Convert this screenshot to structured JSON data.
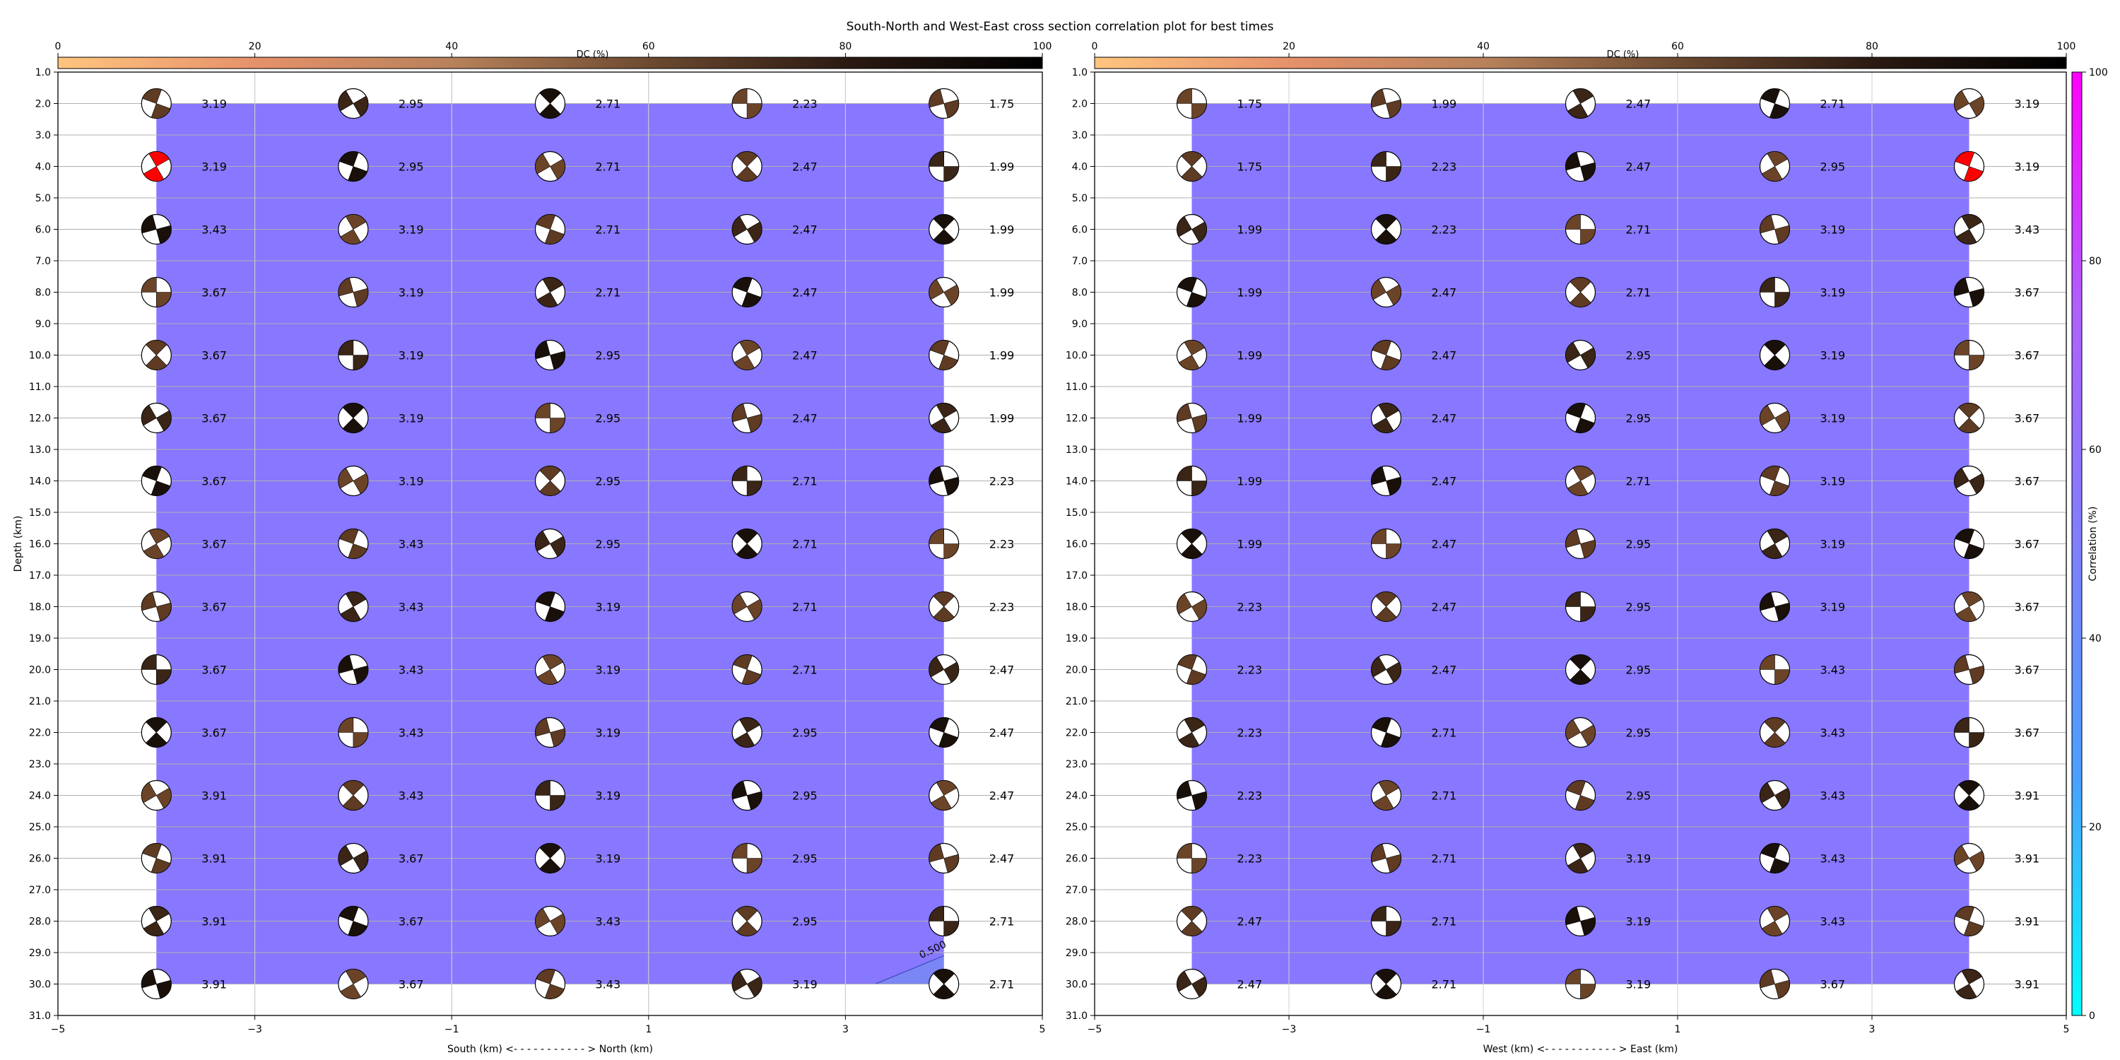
{
  "chart_data": {
    "type": "scatter",
    "title": "South-North and West-East cross section correlation plot for best times",
    "dc_colorbar": {
      "label": "DC (%)",
      "range": [
        0,
        100
      ],
      "ticks": [
        "0",
        "20",
        "40",
        "60",
        "80",
        "100"
      ],
      "colors": [
        "#ffc57f",
        "#e6916a",
        "#b8825b",
        "#6d4a30",
        "#2b1a12",
        "#000000"
      ]
    },
    "correlation_colorbar": {
      "label": "Correlation (%)",
      "range": [
        0,
        100
      ],
      "ticks": [
        "0",
        "20",
        "40",
        "60",
        "80",
        "100"
      ],
      "colors": [
        "#00ffff",
        "#4aa0ff",
        "#7f7fff",
        "#b060ff",
        "#ff00ff"
      ]
    },
    "depth_ticks": [
      "1.0",
      "2.0",
      "3.0",
      "4.0",
      "5.0",
      "6.0",
      "7.0",
      "8.0",
      "9.0",
      "10.0",
      "11.0",
      "12.0",
      "13.0",
      "14.0",
      "15.0",
      "16.0",
      "17.0",
      "18.0",
      "19.0",
      "20.0",
      "21.0",
      "22.0",
      "23.0",
      "24.0",
      "25.0",
      "26.0",
      "27.0",
      "28.0",
      "29.0",
      "30.0",
      "31.0"
    ],
    "depth_range": [
      1,
      31
    ],
    "x_range": [
      -5,
      5
    ],
    "x_ticks": [
      "−5",
      "−3",
      "−1",
      "1",
      "3",
      "5"
    ],
    "x_tick_values": [
      -5,
      -3,
      -1,
      1,
      3,
      5
    ],
    "contour_label": "0.500",
    "fill_color": "#8877ff",
    "fill_hex": "#7b86f5",
    "best_color": "#ff0000",
    "depths": [
      2,
      4,
      6,
      8,
      10,
      12,
      14,
      16,
      18,
      20,
      22,
      24,
      26,
      28,
      30
    ],
    "panels": [
      {
        "ylabel": "Depth (km)",
        "xlabel": "South (km) <- - - - - - - - - - - > North (km)",
        "positions": [
          -4,
          -2,
          0,
          2,
          4
        ],
        "best": [
          1,
          0
        ],
        "values": [
          [
            "3.19",
            "2.95",
            "2.71",
            "2.23",
            "1.75"
          ],
          [
            "3.19",
            "2.95",
            "2.71",
            "2.47",
            "1.99"
          ],
          [
            "3.43",
            "3.19",
            "2.71",
            "2.47",
            "1.99"
          ],
          [
            "3.67",
            "3.19",
            "2.71",
            "2.47",
            "1.99"
          ],
          [
            "3.67",
            "3.19",
            "2.95",
            "2.47",
            "1.99"
          ],
          [
            "3.67",
            "3.19",
            "2.95",
            "2.47",
            "1.99"
          ],
          [
            "3.67",
            "3.19",
            "2.95",
            "2.71",
            "2.23"
          ],
          [
            "3.67",
            "3.43",
            "2.95",
            "2.71",
            "2.23"
          ],
          [
            "3.67",
            "3.43",
            "3.19",
            "2.71",
            "2.23"
          ],
          [
            "3.67",
            "3.43",
            "3.19",
            "2.71",
            "2.47"
          ],
          [
            "3.67",
            "3.43",
            "3.19",
            "2.95",
            "2.47"
          ],
          [
            "3.91",
            "3.43",
            "3.19",
            "2.95",
            "2.47"
          ],
          [
            "3.91",
            "3.67",
            "3.19",
            "2.95",
            "2.47"
          ],
          [
            "3.91",
            "3.67",
            "3.43",
            "2.95",
            "2.71"
          ],
          [
            "3.91",
            "3.67",
            "3.43",
            "3.19",
            "2.71"
          ]
        ]
      },
      {
        "ylabel": "",
        "xlabel": "West (km) <- - - - - - - - - - - > East (km)",
        "positions": [
          -4,
          -2,
          0,
          2,
          4
        ],
        "best": [
          1,
          4
        ],
        "values": [
          [
            "1.75",
            "1.99",
            "2.47",
            "2.71",
            "3.19"
          ],
          [
            "1.75",
            "2.23",
            "2.47",
            "2.95",
            "3.19"
          ],
          [
            "1.99",
            "2.23",
            "2.71",
            "3.19",
            "3.43"
          ],
          [
            "1.99",
            "2.47",
            "2.71",
            "3.19",
            "3.67"
          ],
          [
            "1.99",
            "2.47",
            "2.95",
            "3.19",
            "3.67"
          ],
          [
            "1.99",
            "2.47",
            "2.95",
            "3.19",
            "3.67"
          ],
          [
            "1.99",
            "2.47",
            "2.71",
            "3.19",
            "3.67"
          ],
          [
            "1.99",
            "2.47",
            "2.95",
            "3.19",
            "3.67"
          ],
          [
            "2.23",
            "2.47",
            "2.95",
            "3.19",
            "3.67"
          ],
          [
            "2.23",
            "2.47",
            "2.95",
            "3.43",
            "3.67"
          ],
          [
            "2.23",
            "2.71",
            "2.95",
            "3.43",
            "3.67"
          ],
          [
            "2.23",
            "2.71",
            "2.95",
            "3.43",
            "3.91"
          ],
          [
            "2.23",
            "2.71",
            "3.19",
            "3.43",
            "3.91"
          ],
          [
            "2.47",
            "2.71",
            "3.19",
            "3.43",
            "3.91"
          ],
          [
            "2.47",
            "2.71",
            "3.19",
            "3.67",
            "3.91"
          ]
        ]
      }
    ]
  }
}
